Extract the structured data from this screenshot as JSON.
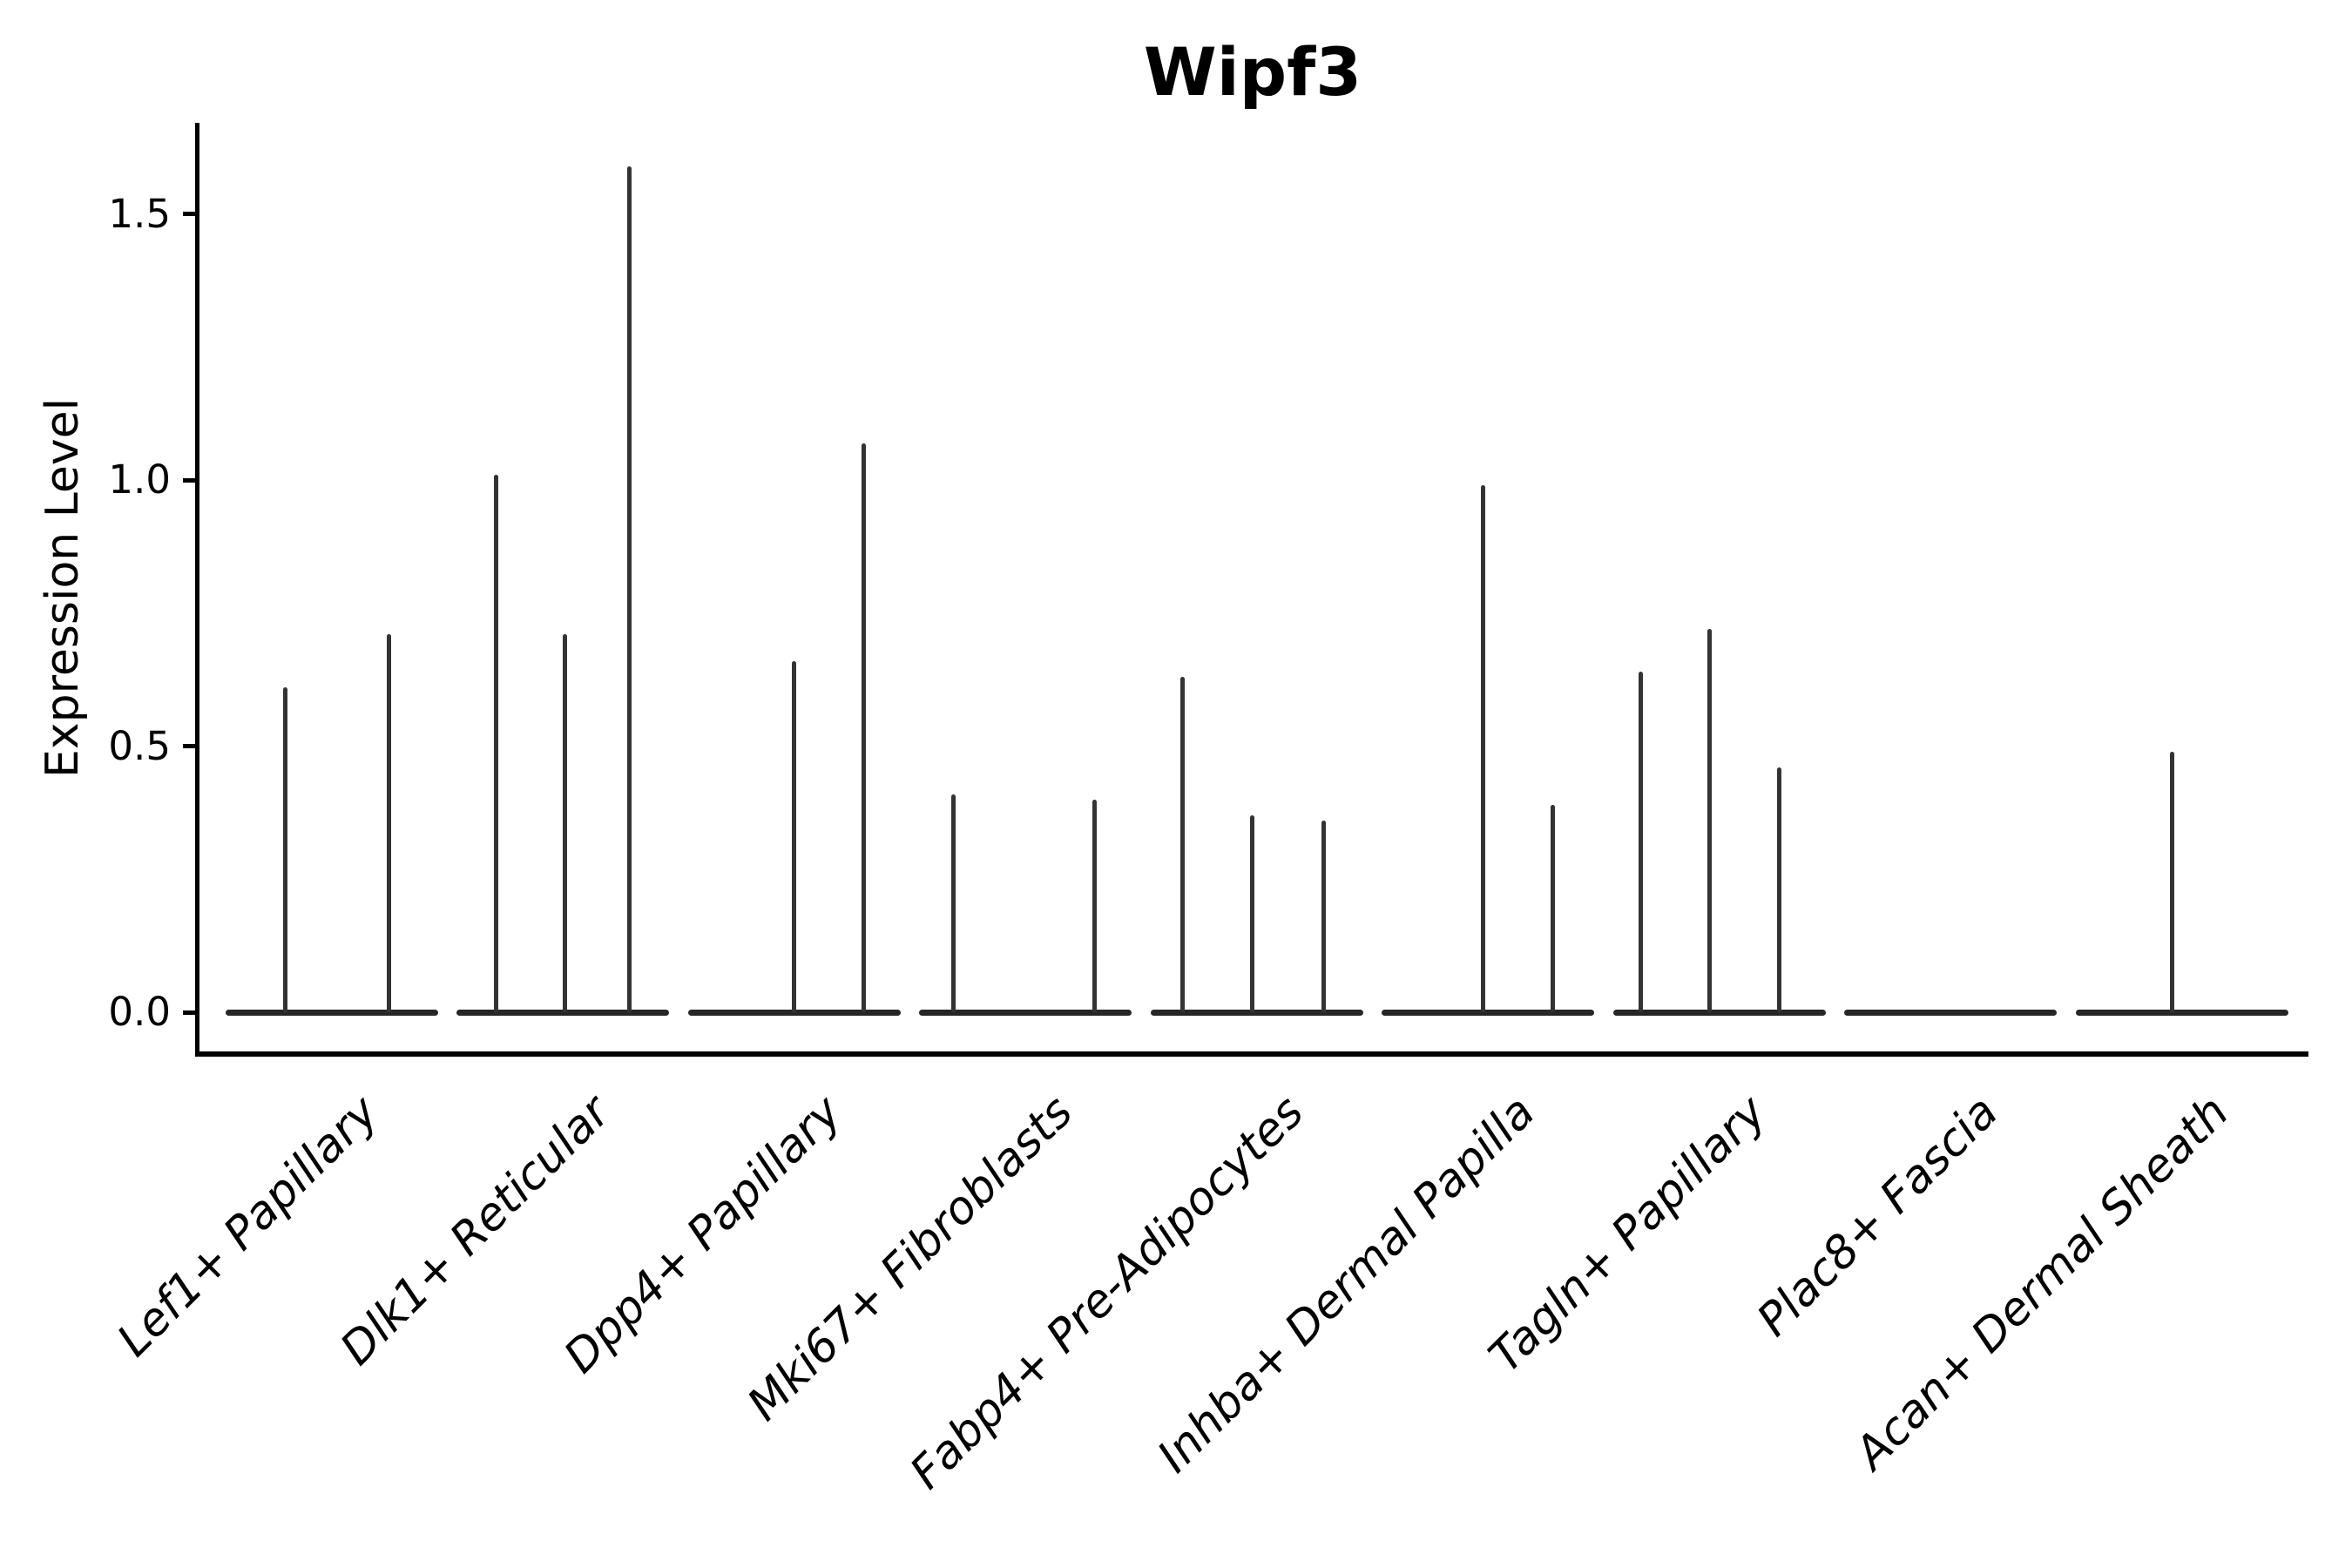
{
  "title": "Wipf3",
  "y_axis": {
    "label": "Expression Level",
    "tick_labels": [
      "0.0",
      "0.5",
      "1.0",
      "1.5"
    ]
  },
  "x_axis": {
    "tick_labels": [
      "Lef1+ Papillary",
      "Dlk1+ Reticular",
      "Dpp4+ Papillary",
      "Mki67+ Fibroblasts",
      "Fabp4+ Pre-Adipocytes",
      "Inhba+ Dermal Papilla",
      "Tagln+ Papillary",
      "Plac8+ Fascia",
      "Acan+ Dermal Sheath"
    ]
  },
  "chart_data": {
    "type": "violin",
    "title": "Wipf3",
    "xlabel": "",
    "ylabel": "Expression Level",
    "ylim": [
      -0.08,
      1.67
    ],
    "ytick_values": [
      0.0,
      0.5,
      1.0,
      1.5
    ],
    "ytick_labels": [
      "0.0",
      "0.5",
      "1.0",
      "1.5"
    ],
    "grid": false,
    "legend": false,
    "baseline_value": 0.0,
    "violin_color": "#333333",
    "categories": [
      "Lef1+ Papillary",
      "Dlk1+ Reticular",
      "Dpp4+ Papillary",
      "Mki67+ Fibroblasts",
      "Fabp4+ Pre-Adipocytes",
      "Inhba+ Dermal Papilla",
      "Tagln+ Papillary",
      "Plac8+ Fascia",
      "Acan+ Dermal Sheath"
    ],
    "series": [
      {
        "category": "Lef1+ Papillary",
        "spikes": [
          {
            "offset": -0.2,
            "max": 0.61
          },
          {
            "offset": 0.25,
            "max": 0.71
          }
        ]
      },
      {
        "category": "Dlk1+ Reticular",
        "spikes": [
          {
            "offset": -0.29,
            "max": 1.01
          },
          {
            "offset": 0.01,
            "max": 0.71
          },
          {
            "offset": 0.29,
            "max": 1.59
          }
        ]
      },
      {
        "category": "Dpp4+ Papillary",
        "spikes": [
          {
            "offset": 0.0,
            "max": 0.66
          },
          {
            "offset": 0.3,
            "max": 1.07
          }
        ]
      },
      {
        "category": "Mki67+ Fibroblasts",
        "spikes": [
          {
            "offset": -0.31,
            "max": 0.41
          },
          {
            "offset": 0.3,
            "max": 0.4
          }
        ]
      },
      {
        "category": "Fabp4+ Pre-Adipocytes",
        "spikes": [
          {
            "offset": -0.32,
            "max": 0.63
          },
          {
            "offset": -0.02,
            "max": 0.37
          },
          {
            "offset": 0.29,
            "max": 0.36
          }
        ]
      },
      {
        "category": "Inhba+ Dermal Papilla",
        "spikes": [
          {
            "offset": -0.02,
            "max": 0.99
          },
          {
            "offset": 0.28,
            "max": 0.39
          }
        ]
      },
      {
        "category": "Tagln+ Papillary",
        "spikes": [
          {
            "offset": -0.34,
            "max": 0.64
          },
          {
            "offset": -0.04,
            "max": 0.72
          },
          {
            "offset": 0.26,
            "max": 0.46
          }
        ]
      },
      {
        "category": "Plac8+ Fascia",
        "spikes": []
      },
      {
        "category": "Acan+ Dermal Sheath",
        "spikes": [
          {
            "offset": -0.04,
            "max": 0.49
          }
        ]
      }
    ]
  }
}
